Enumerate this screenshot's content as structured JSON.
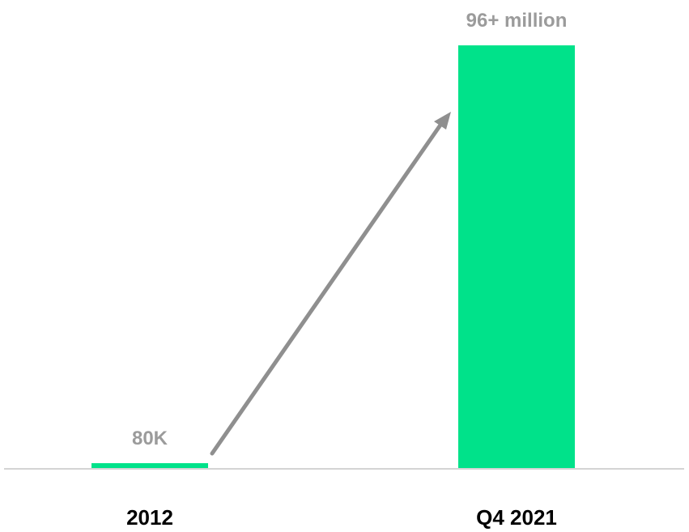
{
  "chart_data": {
    "type": "bar",
    "categories": [
      "2012",
      "Q4 2021"
    ],
    "values": [
      80000,
      96000000
    ],
    "data_labels": [
      "80K",
      "96+ million"
    ],
    "title": "",
    "xlabel": "",
    "ylabel": "",
    "ylim": [
      0,
      96000000
    ],
    "grid": false,
    "legend": "none",
    "annotation": "arrow-from-2012-to-Q4-2021",
    "colors": {
      "bar": "#00e28a",
      "label": "#9b9b9b",
      "axis": "#d4d4d4",
      "arrow": "#8f8f8f",
      "tick": "#000000"
    }
  }
}
